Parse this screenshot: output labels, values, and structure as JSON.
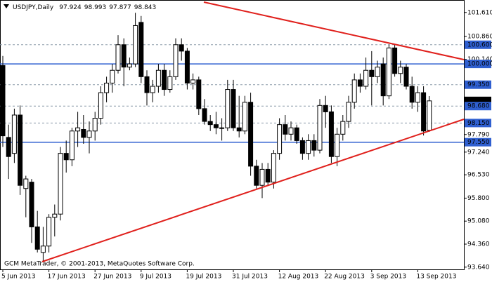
{
  "chart_data": {
    "type": "candlestick",
    "title": "USDJPY,Daily",
    "footer": "GCM MetaTrader, © 2001-2013, MetaQuotes Software Corp.",
    "categories": [
      "5 Jun 2013",
      null,
      null,
      null,
      null,
      null,
      null,
      null,
      "17 Jun 2013",
      null,
      null,
      null,
      null,
      null,
      null,
      null,
      "27 Jun 2013",
      null,
      null,
      null,
      null,
      null,
      null,
      null,
      "9 Jul 2013",
      null,
      null,
      null,
      null,
      null,
      null,
      null,
      "19 Jul 2013",
      null,
      null,
      null,
      null,
      null,
      null,
      null,
      "31 Jul 2013",
      null,
      null,
      null,
      null,
      null,
      null,
      null,
      "12 Aug 2013",
      null,
      null,
      null,
      null,
      null,
      null,
      null,
      "22 Aug 2013",
      null,
      null,
      null,
      null,
      null,
      null,
      null,
      "3 Sep 2013",
      null,
      null,
      null,
      null,
      null,
      null,
      null,
      "13 Sep 2013",
      null,
      null
    ],
    "open": [
      99.95,
      97.7,
      97.2,
      98.4,
      96.1,
      96.3,
      94.9,
      94.1,
      94.3,
      95.2,
      95.3,
      97.2,
      97.0,
      97.9,
      97.95,
      97.7,
      97.9,
      98.3,
      99.1,
      99.4,
      99.8,
      100.6,
      99.9,
      100.0,
      101.3,
      99.6,
      99.1,
      99.3,
      99.8,
      99.2,
      99.6,
      100.6,
      100.4,
      99.4,
      99.5,
      98.6,
      98.2,
      98.1,
      98.0,
      98.0,
      99.2,
      98.0,
      97.9,
      98.8,
      96.8,
      96.2,
      96.7,
      96.3,
      97.2,
      98.1,
      97.8,
      98.0,
      97.6,
      97.2,
      97.6,
      97.3,
      98.7,
      98.5,
      97.1,
      97.8,
      98.2,
      98.8,
      99.5,
      99.3,
      99.8,
      99.6,
      100.0,
      99.0,
      100.5,
      99.7,
      99.9,
      99.3,
      98.8,
      99.1,
      97.924
    ],
    "high": [
      100.25,
      98.1,
      98.6,
      98.7,
      96.5,
      96.4,
      95.4,
      94.9,
      95.3,
      95.6,
      97.4,
      97.6,
      98.0,
      98.5,
      98.4,
      98.2,
      98.5,
      99.3,
      99.6,
      100.0,
      100.9,
      100.8,
      100.2,
      101.6,
      101.5,
      99.8,
      99.5,
      100.0,
      100.0,
      99.8,
      100.8,
      100.8,
      100.5,
      99.7,
      99.6,
      98.9,
      98.4,
      98.5,
      98.3,
      99.5,
      99.5,
      99.0,
      99.0,
      99.1,
      97.0,
      96.9,
      96.9,
      97.3,
      98.3,
      98.4,
      98.2,
      98.1,
      97.7,
      97.8,
      97.8,
      98.9,
      99.0,
      98.7,
      98.0,
      98.4,
      99.0,
      99.7,
      99.7,
      100.2,
      100.4,
      100.1,
      100.2,
      100.6,
      100.6,
      100.1,
      100.0,
      99.6,
      99.3,
      99.3,
      98.993
    ],
    "low": [
      97.4,
      96.4,
      96.9,
      95.9,
      95.2,
      94.4,
      94.1,
      93.8,
      94.1,
      94.6,
      95.1,
      96.6,
      96.8,
      97.4,
      97.5,
      97.2,
      97.6,
      98.1,
      98.8,
      99.1,
      99.7,
      99.3,
      99.8,
      99.9,
      99.4,
      98.7,
      98.8,
      99.1,
      99.0,
      99.1,
      99.5,
      100.1,
      99.2,
      99.2,
      98.4,
      98.1,
      97.9,
      97.8,
      97.6,
      97.9,
      97.9,
      97.7,
      97.8,
      96.5,
      96.1,
      95.8,
      96.2,
      96.1,
      97.0,
      97.6,
      97.6,
      97.5,
      97.0,
      97.0,
      97.1,
      97.2,
      98.0,
      96.9,
      96.8,
      97.6,
      98.0,
      98.6,
      99.1,
      99.2,
      98.7,
      99.4,
      98.7,
      98.9,
      99.6,
      99.4,
      99.2,
      98.6,
      98.5,
      97.76,
      97.877
    ],
    "close": [
      97.75,
      97.1,
      98.4,
      96.2,
      96.4,
      94.9,
      94.2,
      94.3,
      95.2,
      95.3,
      97.2,
      97.0,
      97.9,
      98.0,
      97.7,
      97.9,
      98.3,
      99.1,
      99.4,
      99.8,
      100.6,
      99.9,
      100.0,
      101.2,
      99.6,
      99.1,
      99.3,
      99.8,
      99.2,
      99.6,
      100.6,
      100.4,
      99.4,
      99.5,
      98.6,
      98.2,
      98.1,
      98.0,
      98.0,
      99.2,
      98.0,
      97.9,
      98.8,
      96.8,
      96.2,
      96.7,
      96.3,
      97.2,
      98.1,
      97.8,
      98.0,
      97.6,
      97.2,
      97.6,
      97.3,
      98.7,
      98.5,
      97.1,
      97.8,
      98.2,
      98.8,
      99.5,
      99.3,
      99.8,
      99.6,
      99.9,
      99.0,
      100.5,
      99.7,
      99.9,
      99.3,
      98.8,
      99.1,
      97.9,
      98.843
    ],
    "up_color": "#ffffff",
    "down_color": "#000000",
    "ylim": [
      93.57,
      102.0
    ],
    "yticks": [
      {
        "value": 101.61,
        "label": "101.610"
      },
      {
        "value": 100.86,
        "label": "100.860"
      },
      {
        "value": 100.6,
        "label": "100.600",
        "line": "dashed",
        "highlight": "level"
      },
      {
        "value": 100.14,
        "label": "100.140"
      },
      {
        "value": 100.0,
        "label": "100.000",
        "line": "solid",
        "highlight": "level"
      },
      {
        "value": 99.35,
        "label": "99.350",
        "line": "dashed",
        "highlight": "level"
      },
      98.843,
      {
        "value": 98.68,
        "label": "98.680",
        "line": "dashed",
        "highlight": "level"
      },
      {
        "value": 98.15,
        "label": "98.150",
        "line": "dashed",
        "highlight": "level"
      },
      {
        "value": 97.79,
        "label": "97.790"
      },
      {
        "value": 97.55,
        "label": "97.550",
        "line": "solid",
        "highlight": "level"
      },
      {
        "value": 97.24,
        "label": "97.240"
      },
      {
        "value": 96.53,
        "label": "96.530"
      },
      {
        "value": 95.8,
        "label": "95.800"
      },
      {
        "value": 95.08,
        "label": "95.080"
      },
      {
        "value": 94.36,
        "label": "94.360"
      },
      {
        "value": 93.64,
        "label": "93.640"
      }
    ],
    "price_tick": 6
  }
}
